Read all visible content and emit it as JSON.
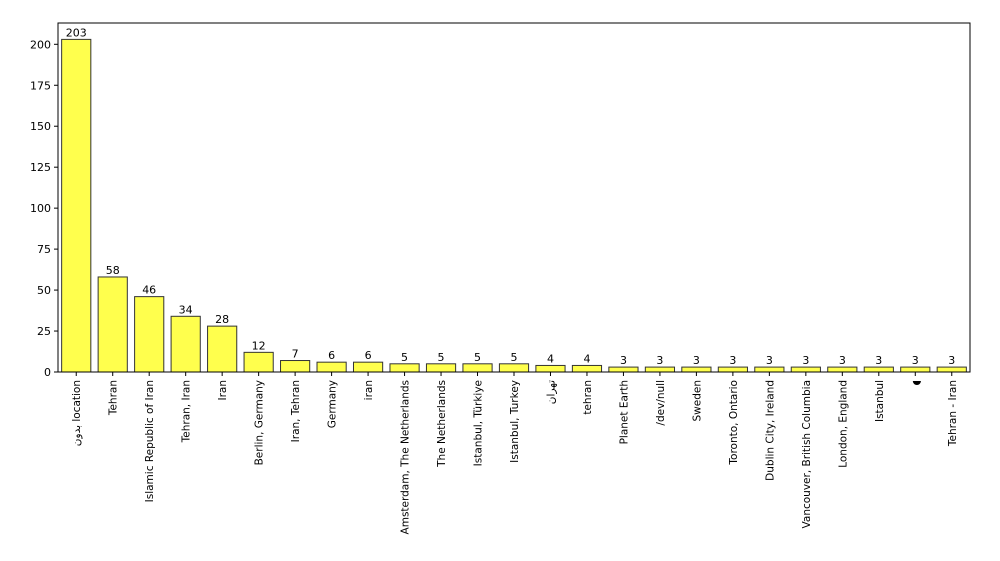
{
  "chart_data": {
    "type": "bar",
    "title": "",
    "xlabel": "",
    "ylabel": "",
    "ylim": [
      0,
      213
    ],
    "yticks": [
      0,
      25,
      50,
      75,
      100,
      125,
      150,
      175,
      200
    ],
    "grid": false,
    "bar_color": "#ffff4d",
    "bar_edge_color": "#333333",
    "categories": [
      "بدون location",
      "Tehran",
      "Islamic Republic of Iran",
      "Tehran, Iran",
      "Iran",
      "Berlin, Germany",
      "Iran, Tehran",
      "Germany",
      "iran",
      "Amsterdam, The Netherlands",
      "The Netherlands",
      "Istanbul, Türkiye",
      "Istanbul, Turkey",
      "تهران",
      "tehran",
      "Planet Earth",
      "/dev/null",
      "Sweden",
      "Toronto, Ontario",
      "Dublin City, Ireland",
      "Vancouver, British Columbia",
      "London, England",
      "Istanbul",
      "◖",
      "Tehran - Iran"
    ],
    "values": [
      203,
      58,
      46,
      34,
      28,
      12,
      7,
      6,
      6,
      5,
      5,
      5,
      5,
      4,
      4,
      3,
      3,
      3,
      3,
      3,
      3,
      3,
      3,
      3,
      3
    ]
  }
}
